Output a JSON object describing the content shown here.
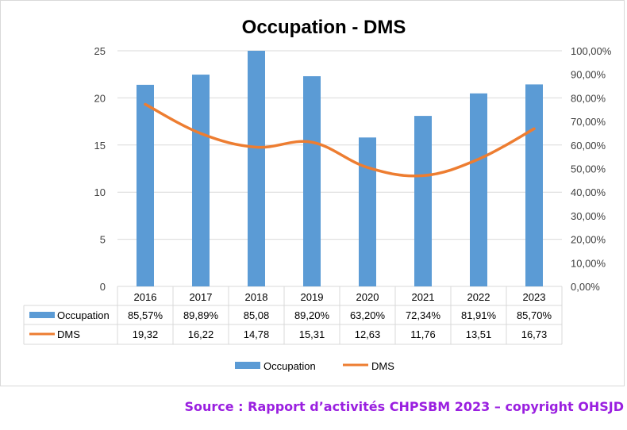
{
  "chart_data": {
    "type": "bar+line",
    "title": "Occupation - DMS",
    "categories": [
      "2016",
      "2017",
      "2018",
      "2019",
      "2020",
      "2021",
      "2022",
      "2023"
    ],
    "series": [
      {
        "name": "Occupation",
        "kind": "bar",
        "axis": "left",
        "values": [
          21.39,
          22.47,
          25,
          22.3,
          15.8,
          18.09,
          20.48,
          21.43
        ],
        "labels": [
          "85,57%",
          "89,89%",
          "85,08",
          "89,20%",
          "63,20%",
          "72,34%",
          "81,91%",
          "85,70%"
        ]
      },
      {
        "name": "DMS",
        "kind": "line",
        "axis": "right",
        "values": [
          77.3,
          64.9,
          59.1,
          61.2,
          50.5,
          47.0,
          54.0,
          66.9
        ],
        "labels": [
          "19,32",
          "16,22",
          "14,78",
          "15,31",
          "12,63",
          "11,76",
          "13,51",
          "16,73"
        ]
      }
    ],
    "y_left": {
      "ticks": [
        "0",
        "5",
        "10",
        "15",
        "20",
        "25"
      ],
      "ylim": [
        0,
        25
      ]
    },
    "y_right": {
      "ticks": [
        "0,00%",
        "10,00%",
        "20,00%",
        "30,00%",
        "40,00%",
        "50,00%",
        "60,00%",
        "70,00%",
        "80,00%",
        "90,00%",
        "100,00%"
      ],
      "ylim": [
        0,
        100
      ]
    },
    "legend": {
      "position": "bottom",
      "items": [
        "Occupation",
        "DMS"
      ]
    },
    "grid": true,
    "colors": {
      "bar": "#5b9bd5",
      "line": "#ed7d31",
      "grid": "#d9d9d9"
    }
  },
  "source": "Source : Rapport d’activités CHPSBM 2023 – copyright OHSJD"
}
